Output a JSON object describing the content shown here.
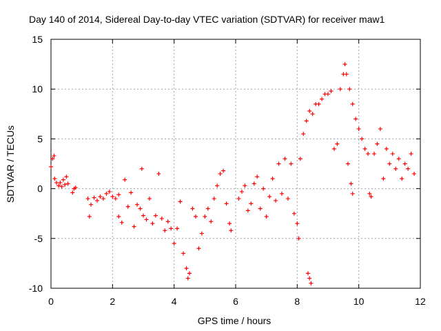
{
  "chart_data": {
    "type": "scatter",
    "title": "Day 140 of 2014, Sidereal Day-to-day VTEC variation (SDTVAR) for receiver maw1",
    "xlabel": "GPS time / hours",
    "ylabel": "SDTVAR / TECUs",
    "xlim": [
      0,
      12
    ],
    "ylim": [
      -10,
      15
    ],
    "xticks": [
      0,
      2,
      4,
      6,
      8,
      10,
      12
    ],
    "yticks": [
      -10,
      -5,
      0,
      5,
      10,
      15
    ],
    "grid": true,
    "marker": "+",
    "color": "#ff0000",
    "series": [
      {
        "name": "maw1",
        "points": [
          [
            0.0,
            2.2
          ],
          [
            0.05,
            3.0
          ],
          [
            0.1,
            3.3
          ],
          [
            0.12,
            1.0
          ],
          [
            0.18,
            0.6
          ],
          [
            0.25,
            0.3
          ],
          [
            0.3,
            0.6
          ],
          [
            0.35,
            0.2
          ],
          [
            0.4,
            0.9
          ],
          [
            0.45,
            0.4
          ],
          [
            0.5,
            1.2
          ],
          [
            0.55,
            0.5
          ],
          [
            0.7,
            -0.4
          ],
          [
            0.8,
            0.1
          ],
          [
            0.75,
            0.0
          ],
          [
            1.2,
            -1.0
          ],
          [
            1.25,
            -2.8
          ],
          [
            1.3,
            -1.6
          ],
          [
            1.4,
            -0.9
          ],
          [
            1.5,
            -1.2
          ],
          [
            1.6,
            -0.8
          ],
          [
            1.7,
            -1.0
          ],
          [
            1.8,
            -0.5
          ],
          [
            1.9,
            -0.3
          ],
          [
            2.0,
            -0.8
          ],
          [
            2.1,
            -1.0
          ],
          [
            2.2,
            -0.6
          ],
          [
            2.2,
            -2.8
          ],
          [
            2.3,
            -3.4
          ],
          [
            2.4,
            0.9
          ],
          [
            2.5,
            -1.8
          ],
          [
            2.6,
            -0.4
          ],
          [
            2.7,
            -3.8
          ],
          [
            2.8,
            -1.6
          ],
          [
            2.9,
            -2.0
          ],
          [
            2.95,
            2.0
          ],
          [
            3.0,
            -2.7
          ],
          [
            3.1,
            -3.1
          ],
          [
            3.2,
            -1.0
          ],
          [
            3.3,
            -3.5
          ],
          [
            3.4,
            -2.7
          ],
          [
            3.5,
            1.5
          ],
          [
            3.6,
            -3.0
          ],
          [
            3.7,
            -4.2
          ],
          [
            3.8,
            -3.3
          ],
          [
            3.9,
            -4.0
          ],
          [
            4.0,
            -5.5
          ],
          [
            4.1,
            -4.0
          ],
          [
            4.2,
            -1.3
          ],
          [
            4.3,
            -6.5
          ],
          [
            4.4,
            -8.0
          ],
          [
            4.45,
            -9.0
          ],
          [
            4.5,
            -8.5
          ],
          [
            4.6,
            -2.0
          ],
          [
            4.7,
            -2.8
          ],
          [
            4.8,
            -6.0
          ],
          [
            4.9,
            -4.5
          ],
          [
            5.0,
            -2.8
          ],
          [
            5.1,
            -2.0
          ],
          [
            5.2,
            -3.3
          ],
          [
            5.3,
            -1.0
          ],
          [
            5.4,
            0.3
          ],
          [
            5.5,
            1.5
          ],
          [
            5.6,
            1.8
          ],
          [
            5.7,
            -1.5
          ],
          [
            5.8,
            -3.5
          ],
          [
            5.85,
            -4.2
          ],
          [
            6.1,
            -1.0
          ],
          [
            6.2,
            -0.3
          ],
          [
            6.3,
            0.3
          ],
          [
            6.4,
            -2.2
          ],
          [
            6.5,
            -1.5
          ],
          [
            6.6,
            0.5
          ],
          [
            6.7,
            1.2
          ],
          [
            6.8,
            -2.0
          ],
          [
            6.9,
            0.0
          ],
          [
            7.0,
            -2.8
          ],
          [
            7.1,
            -0.8
          ],
          [
            7.2,
            1.0
          ],
          [
            7.3,
            -1.2
          ],
          [
            7.4,
            2.5
          ],
          [
            7.5,
            -0.5
          ],
          [
            7.6,
            3.0
          ],
          [
            7.7,
            -1.0
          ],
          [
            7.8,
            2.5
          ],
          [
            7.9,
            -2.5
          ],
          [
            8.0,
            -3.5
          ],
          [
            8.05,
            -5.0
          ],
          [
            8.1,
            3.0
          ],
          [
            8.2,
            5.5
          ],
          [
            8.3,
            6.8
          ],
          [
            8.4,
            7.8
          ],
          [
            8.5,
            7.5
          ],
          [
            8.6,
            8.5
          ],
          [
            8.7,
            8.5
          ],
          [
            8.8,
            9.0
          ],
          [
            8.9,
            9.5
          ],
          [
            9.0,
            9.5
          ],
          [
            9.1,
            9.8
          ],
          [
            9.2,
            4.0
          ],
          [
            9.3,
            4.5
          ],
          [
            9.4,
            10.0
          ],
          [
            9.5,
            11.5
          ],
          [
            9.55,
            12.5
          ],
          [
            9.6,
            11.5
          ],
          [
            9.7,
            10.0
          ],
          [
            9.8,
            8.5
          ],
          [
            9.9,
            7.0
          ],
          [
            8.35,
            -8.5
          ],
          [
            8.4,
            -9.0
          ],
          [
            8.45,
            -9.5
          ],
          [
            9.65,
            2.5
          ],
          [
            9.75,
            0.5
          ],
          [
            9.8,
            -0.5
          ],
          [
            10.0,
            6.0
          ],
          [
            10.1,
            5.0
          ],
          [
            10.2,
            4.0
          ],
          [
            10.3,
            3.5
          ],
          [
            10.35,
            -0.5
          ],
          [
            10.4,
            -0.8
          ],
          [
            10.5,
            3.5
          ],
          [
            10.6,
            4.5
          ],
          [
            10.7,
            6.0
          ],
          [
            10.8,
            1.0
          ],
          [
            10.9,
            4.0
          ],
          [
            11.0,
            2.5
          ],
          [
            11.1,
            3.5
          ],
          [
            11.2,
            2.0
          ],
          [
            11.3,
            3.0
          ],
          [
            11.4,
            1.0
          ],
          [
            11.5,
            2.5
          ],
          [
            11.6,
            2.0
          ],
          [
            11.7,
            3.5
          ],
          [
            11.8,
            1.5
          ]
        ]
      }
    ]
  }
}
